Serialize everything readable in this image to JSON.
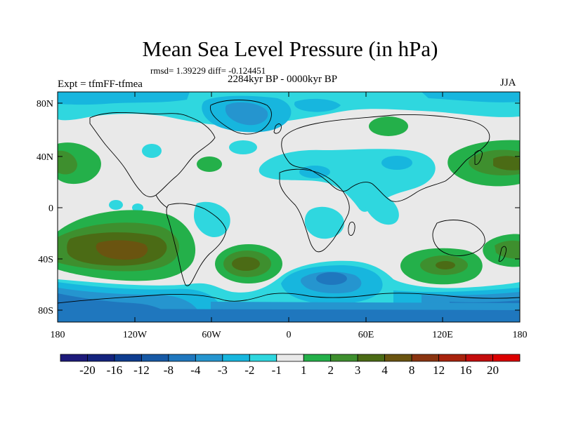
{
  "title": "Mean Sea Level Pressure (in hPa)",
  "stats": "rmsd= 1.39229 diff= -0.124451",
  "period": "2284kyr BP - 0000kyr BP",
  "experiment": "Expt = tfmFF-tfmea",
  "season": "JJA",
  "lat_ticks": [
    "80N",
    "40N",
    "0",
    "40S",
    "80S"
  ],
  "lon_ticks": [
    "180",
    "120W",
    "60W",
    "0",
    "60E",
    "120E",
    "180"
  ],
  "colorbar": {
    "labels": [
      "-20",
      "-16",
      "-12",
      "-8",
      "-4",
      "-3",
      "-2",
      "-1",
      "1",
      "2",
      "3",
      "4",
      "8",
      "12",
      "16",
      "20"
    ],
    "colors": [
      "#1d1a7a",
      "#14237e",
      "#0e3c8f",
      "#1759a5",
      "#1f77be",
      "#2595cf",
      "#17b6de",
      "#2fd7df",
      "#e9e9e9",
      "#24b04a",
      "#3e8f2e",
      "#4b6b15",
      "#6a5410",
      "#8a3410",
      "#a8220c",
      "#c40c0c",
      "#dc0000"
    ]
  },
  "colors": {
    "neutral": "#e9e9e9",
    "cyan": "#2fd7df",
    "teal": "#17b6de",
    "blue": "#2595cf",
    "mid_blue": "#1f77be",
    "green": "#24b04a",
    "dark_green": "#3e8f2e",
    "olive": "#4b6b15",
    "brown": "#6a5410"
  }
}
